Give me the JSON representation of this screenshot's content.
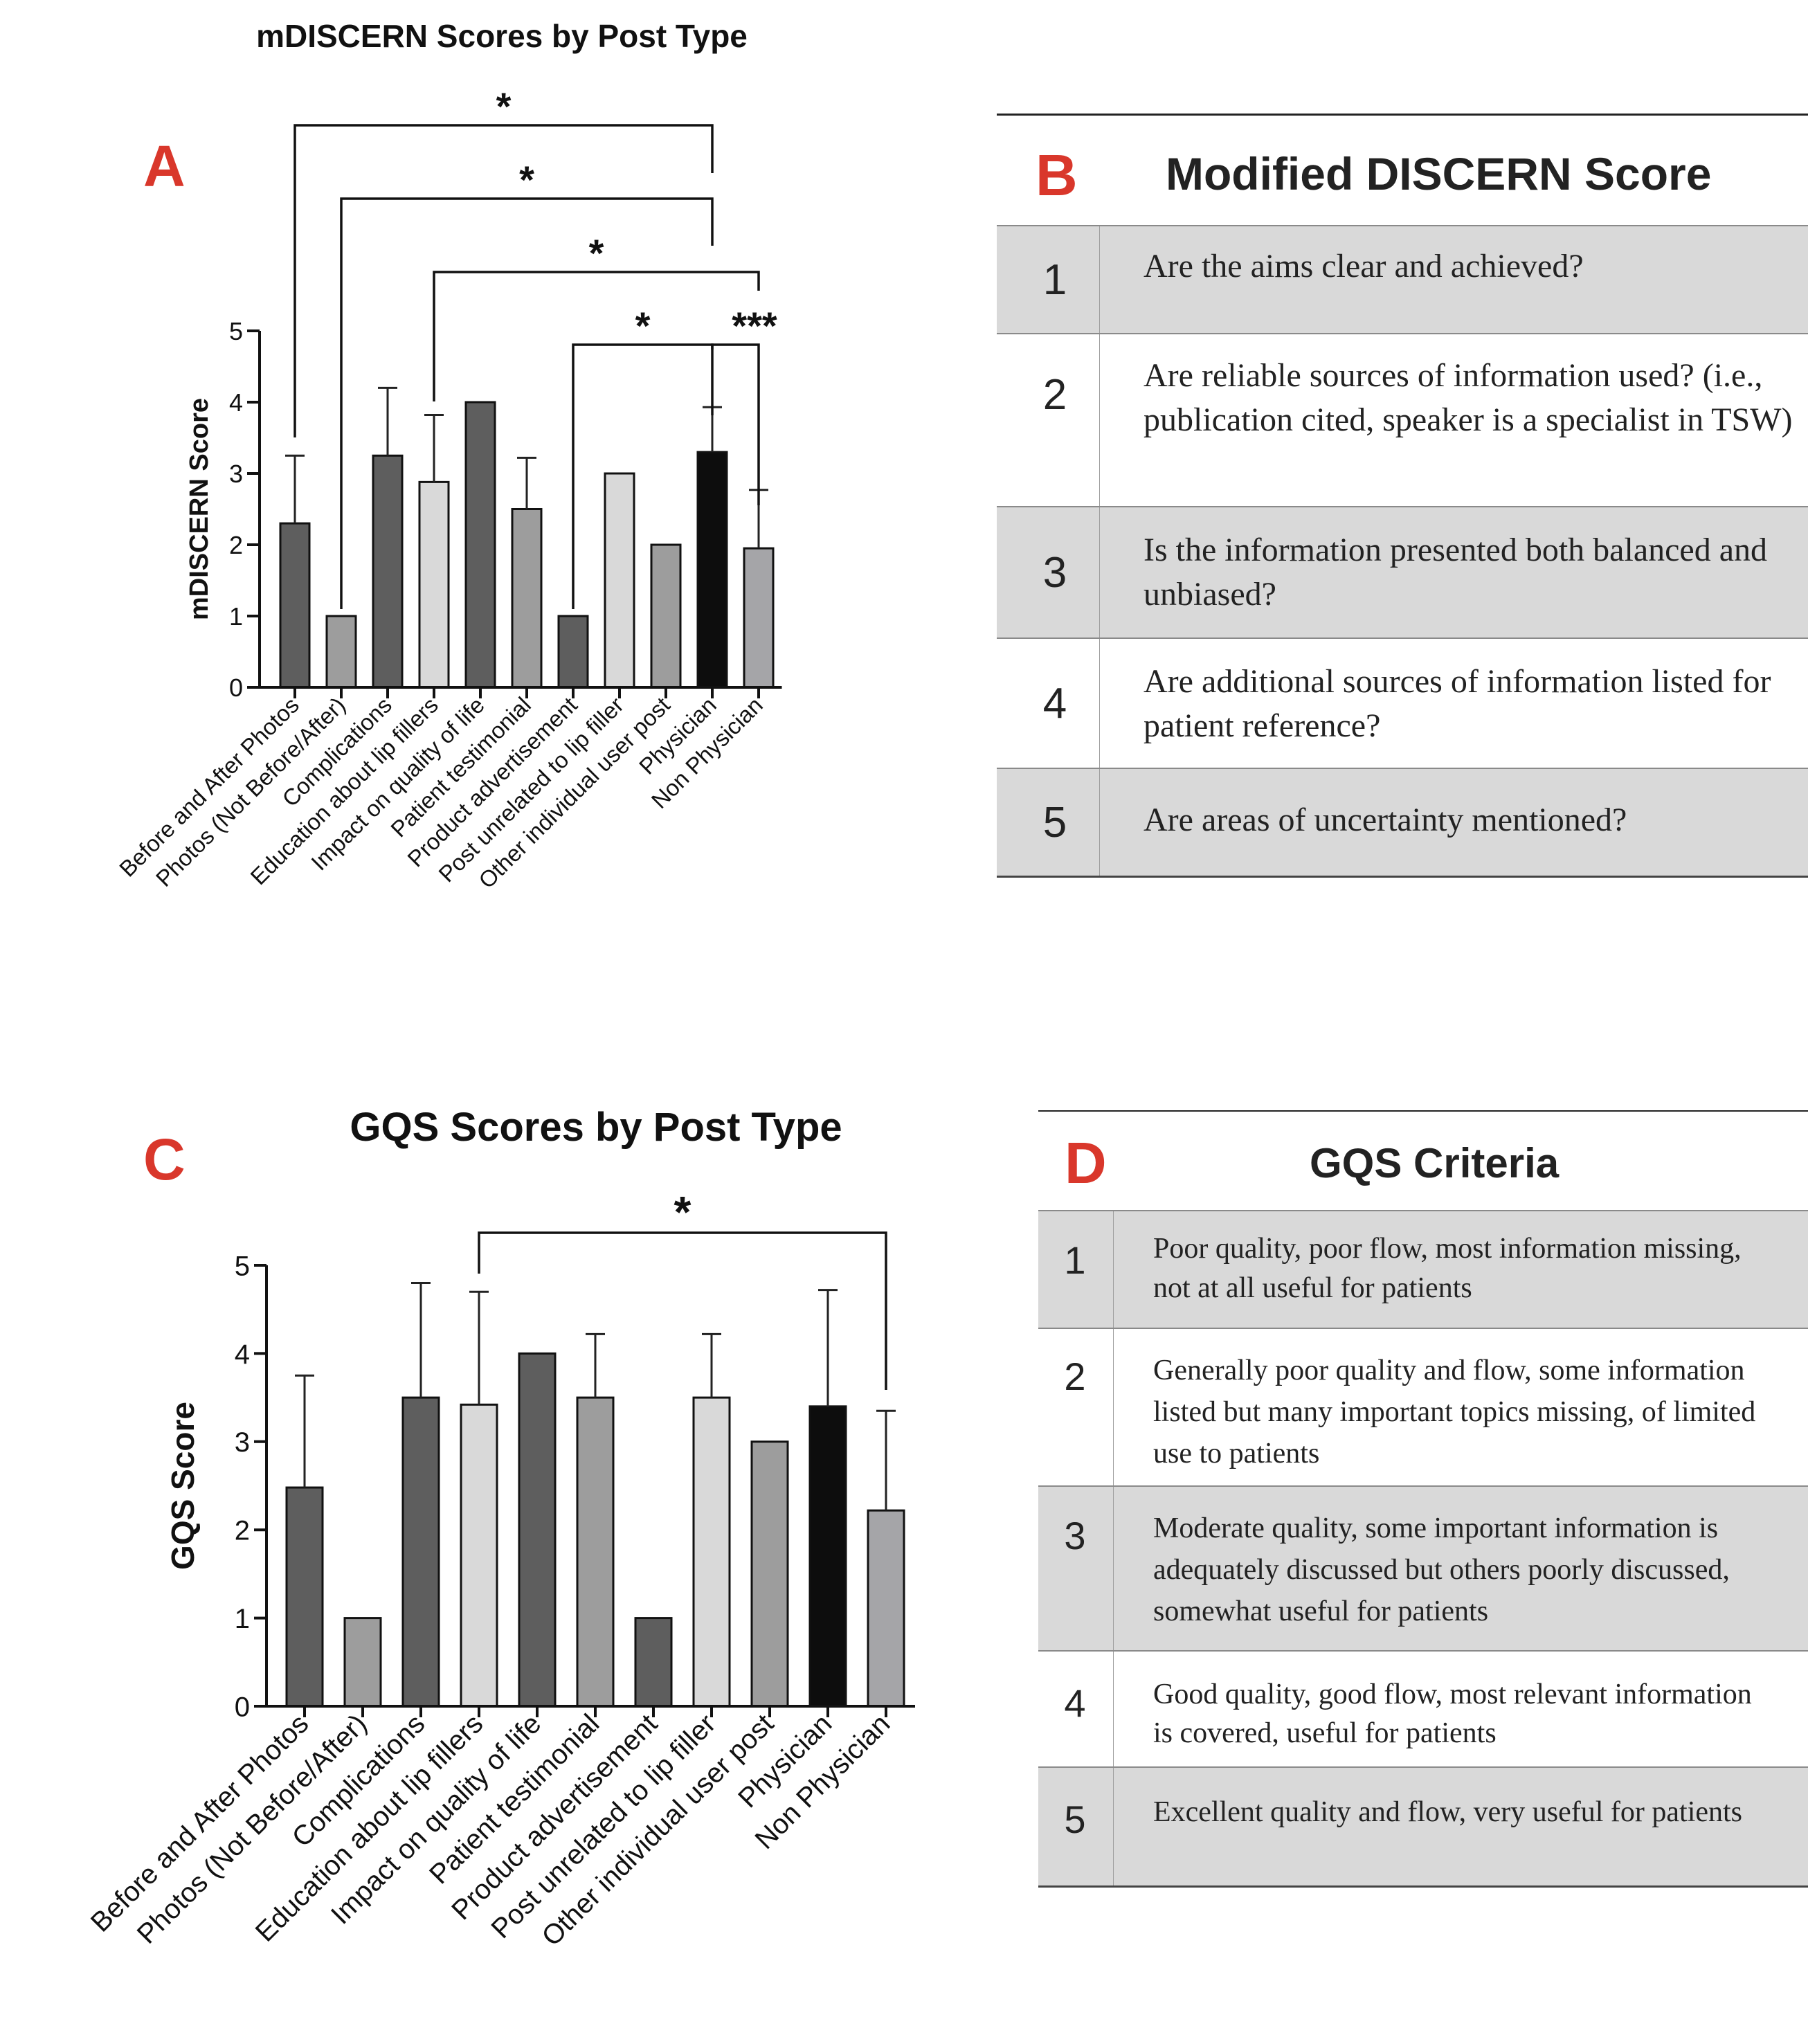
{
  "colors": {
    "panel_letter": "#d9372b",
    "bar_dark": "#5e5e5e",
    "bar_mid": "#9d9d9d",
    "bar_light": "#d9d9d9",
    "bar_black": "#0d0d0d",
    "bar_nonphysician": "#a5a5a8",
    "table_shade": "#d9d9d9"
  },
  "panels": {
    "a": "A",
    "b": "B",
    "c": "C",
    "d": "D"
  },
  "chart_data": [
    {
      "type": "bar",
      "title": "mDISCERN Scores by Post Type",
      "xlabel": "",
      "ylabel": "mDISCERN Score",
      "ylim": [
        0,
        5
      ],
      "yticks": [
        0,
        1,
        2,
        3,
        4,
        5
      ],
      "categories": [
        "Before and After Photos",
        "Photos (Not Before/After)",
        "Complications",
        "Education about lip fillers",
        "Impact on quality of life",
        "Patient testimonial",
        "Product advertisement",
        "Post unrelated to lip filler",
        "Other individual user post",
        "Physician",
        "Non Physician"
      ],
      "values": [
        2.3,
        1.0,
        3.25,
        2.88,
        4.0,
        2.5,
        1.0,
        3.0,
        2.0,
        3.3,
        1.95
      ],
      "error_upper": [
        3.25,
        1.0,
        4.2,
        3.82,
        4.0,
        3.22,
        1.0,
        3.0,
        2.0,
        3.93,
        2.77
      ],
      "bar_colors": [
        "#5e5e5e",
        "#9d9d9d",
        "#5e5e5e",
        "#d9d9d9",
        "#5e5e5e",
        "#9d9d9d",
        "#5e5e5e",
        "#d9d9d9",
        "#9d9d9d",
        "#0d0d0d",
        "#a5a5a8"
      ],
      "significance": [
        {
          "from": "Before and After Photos",
          "to": "Physician",
          "label": "*"
        },
        {
          "from": "Photos (Not Before/After)",
          "to": "Physician",
          "label": "*"
        },
        {
          "from": "Education about lip fillers",
          "to": "Non Physician",
          "label": "*"
        },
        {
          "from": "Product advertisement",
          "to": "Physician",
          "label": "*"
        },
        {
          "from": "Physician",
          "to": "Non Physician",
          "label": "***"
        }
      ],
      "grid": false
    },
    {
      "type": "bar",
      "title": "GQS Scores by Post Type",
      "xlabel": "",
      "ylabel": "GQS Score",
      "ylim": [
        0,
        5
      ],
      "yticks": [
        0,
        1,
        2,
        3,
        4,
        5
      ],
      "categories": [
        "Before and After Photos",
        "Photos (Not Before/After)",
        "Complications",
        "Education about lip fillers",
        "Impact on quality of life",
        "Patient testimonial",
        "Product advertisement",
        "Post unrelated to lip filler",
        "Other individual user post",
        "Physician",
        "Non Physician"
      ],
      "values": [
        2.48,
        1.0,
        3.5,
        3.42,
        4.0,
        3.5,
        1.0,
        3.5,
        3.0,
        3.4,
        2.22
      ],
      "error_upper": [
        3.75,
        1.0,
        4.8,
        4.7,
        4.0,
        4.22,
        1.0,
        4.22,
        3.0,
        4.72,
        3.35
      ],
      "bar_colors": [
        "#5e5e5e",
        "#9d9d9d",
        "#5e5e5e",
        "#d9d9d9",
        "#5e5e5e",
        "#9d9d9d",
        "#5e5e5e",
        "#d9d9d9",
        "#9d9d9d",
        "#0d0d0d",
        "#a5a5a8"
      ],
      "significance": [
        {
          "from": "Education about lip fillers",
          "to": "Non Physician",
          "label": "*"
        }
      ],
      "grid": false
    }
  ],
  "tables": {
    "discern": {
      "title": "Modified DISCERN Score",
      "rows": [
        {
          "num": "1",
          "text": "Are the aims clear and achieved?"
        },
        {
          "num": "2",
          "text": "Are reliable sources of information used? (i.e., publication cited, speaker is a specialist in TSW)"
        },
        {
          "num": "3",
          "text": "Is the information presented both balanced and unbiased?"
        },
        {
          "num": "4",
          "text": "Are additional sources of information listed for patient reference?"
        },
        {
          "num": "5",
          "text": "Are areas of uncertainty mentioned?"
        }
      ]
    },
    "gqs": {
      "title": "GQS Criteria",
      "rows": [
        {
          "num": "1",
          "text": "Poor quality, poor flow, most information missing, not at all useful for patients"
        },
        {
          "num": "2",
          "text": "Generally poor quality and flow, some information listed but many important topics missing, of limited use to patients"
        },
        {
          "num": "3",
          "text": "Moderate quality, some important information is adequately discussed but others poorly discussed, somewhat useful for patients"
        },
        {
          "num": "4",
          "text": "Good quality, good flow, most relevant information is covered, useful for patients"
        },
        {
          "num": "5",
          "text": "Excellent quality and flow, very useful for patients"
        }
      ]
    }
  }
}
